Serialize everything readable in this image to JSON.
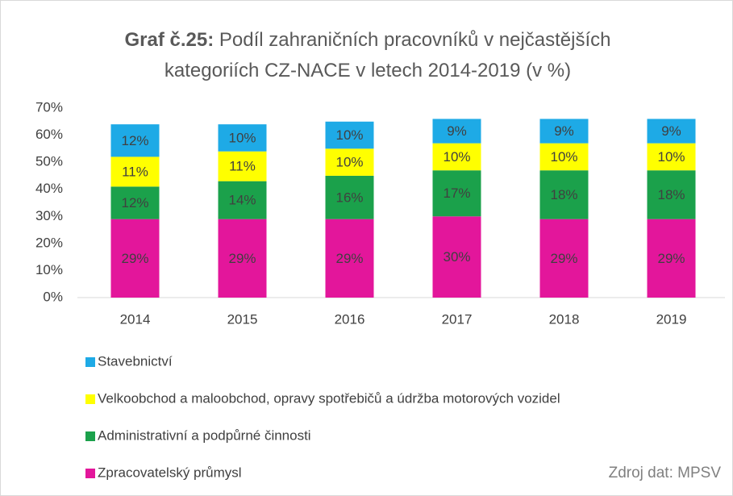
{
  "chart_data": {
    "type": "bar",
    "stacked": true,
    "title_label": "Graf č.25:",
    "title": "Podíl zahraničních pracovníků v nejčastějších kategoriích CZ-NACE v letech 2014-2019  (v %)",
    "categories": [
      "2014",
      "2015",
      "2016",
      "2017",
      "2018",
      "2019"
    ],
    "series": [
      {
        "name": "Zpracovatelský průmysl",
        "color": "#e3169b",
        "values": [
          29,
          29,
          29,
          30,
          29,
          29
        ],
        "value_labels": [
          "29%",
          "29%",
          "29%",
          "30%",
          "29%",
          "29%"
        ]
      },
      {
        "name": "Administrativní a podpůrné činnosti",
        "color": "#1ba14b",
        "values": [
          12,
          14,
          16,
          17,
          18,
          18
        ],
        "value_labels": [
          "12%",
          "14%",
          "16%",
          "17%",
          "18%",
          "18%"
        ]
      },
      {
        "name": "Velkoobchod a maloobchod, opravy spotřebičů a údržba motorových vozidel",
        "color": "#ffff00",
        "values": [
          11,
          11,
          10,
          10,
          10,
          10
        ],
        "value_labels": [
          "11%",
          "11%",
          "10%",
          "10%",
          "10%",
          "10%"
        ]
      },
      {
        "name": "Stavebnictví",
        "color": "#1eaae6",
        "values": [
          12,
          10,
          10,
          9,
          9,
          9
        ],
        "value_labels": [
          "12%",
          "10%",
          "10%",
          "9%",
          "9%",
          "9%"
        ]
      }
    ],
    "ylim": [
      0,
      70
    ],
    "yticks": [
      {
        "value": 0,
        "label": "0%"
      },
      {
        "value": 10,
        "label": "10%"
      },
      {
        "value": 20,
        "label": "20%"
      },
      {
        "value": 30,
        "label": "30%"
      },
      {
        "value": 40,
        "label": "40%"
      },
      {
        "value": 50,
        "label": "50%"
      },
      {
        "value": 60,
        "label": "60%"
      },
      {
        "value": 70,
        "label": "70%"
      }
    ],
    "grid": false,
    "legend": "bottom",
    "source": "Zdroj dat: MPSV"
  }
}
